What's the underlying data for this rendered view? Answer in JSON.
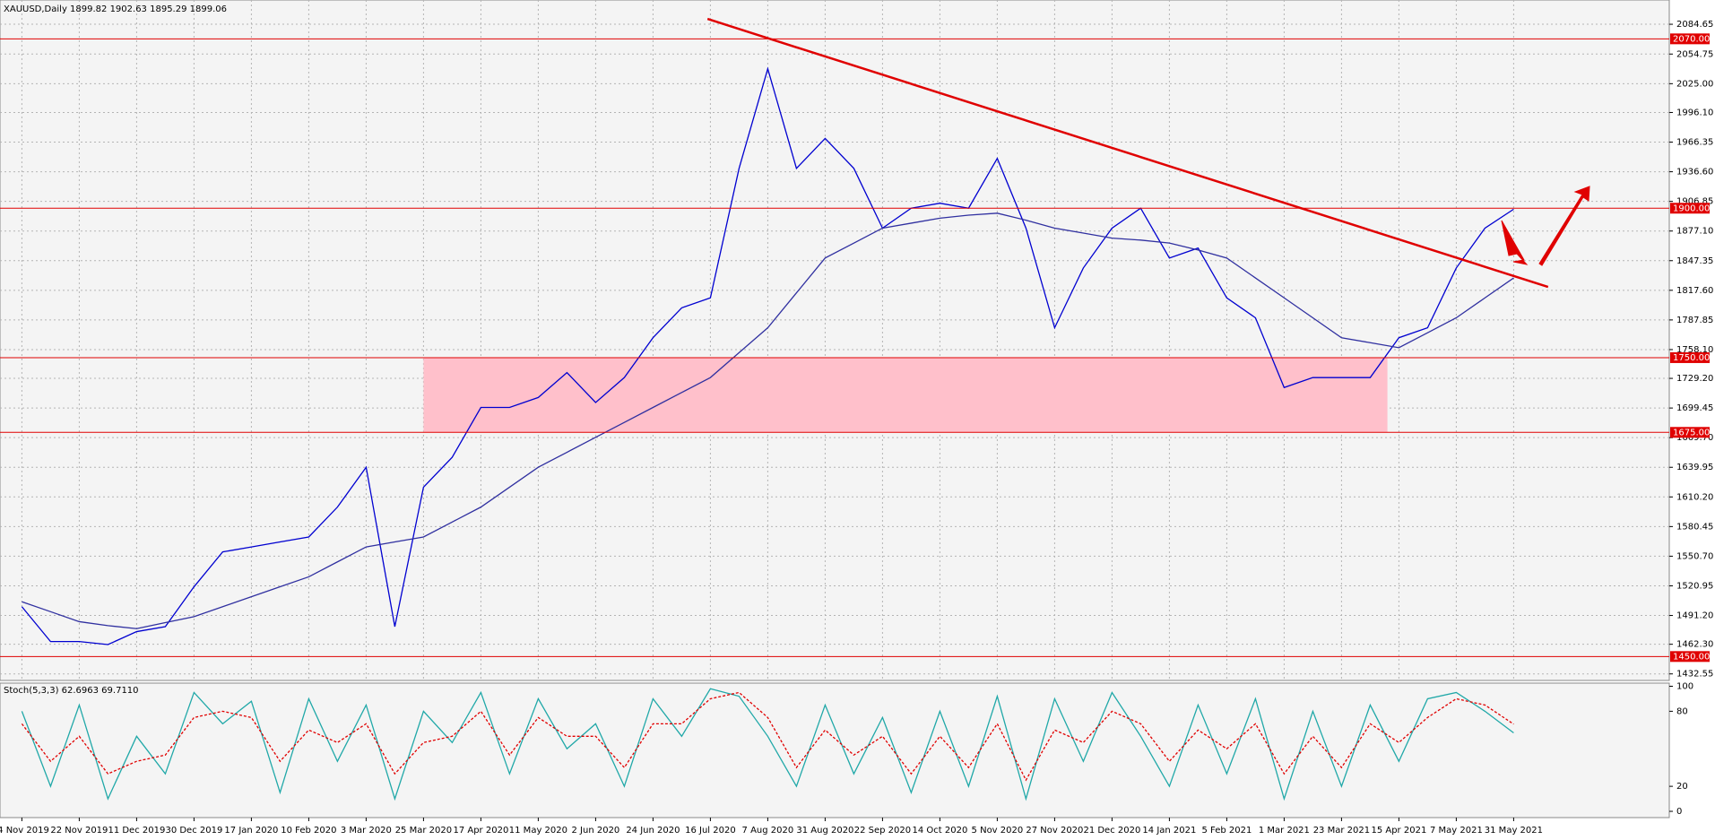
{
  "chart_data": [
    {
      "type": "line",
      "title": "XAUUSD,Daily  1899.82 1902.63 1895.29 1899.06",
      "categories": [
        "4 Nov 2019",
        null,
        "22 Nov 2019",
        null,
        "11 Dec 2019",
        null,
        "30 Dec 2019",
        null,
        "17 Jan 2020",
        null,
        "10 Feb 2020",
        null,
        "3 Mar 2020",
        null,
        "25 Mar 2020",
        null,
        "17 Apr 2020",
        null,
        "11 May 2020",
        null,
        "2 Jun 2020",
        null,
        "24 Jun 2020",
        null,
        "16 Jul 2020",
        null,
        "7 Aug 2020",
        null,
        "31 Aug 2020",
        null,
        "22 Sep 2020",
        null,
        "14 Oct 2020",
        null,
        "5 Nov 2020",
        null,
        "27 Nov 2020",
        null,
        "21 Dec 2020",
        null,
        "14 Jan 2021",
        null,
        "5 Feb 2021",
        null,
        "1 Mar 2021",
        null,
        "23 Mar 2021",
        null,
        "15 Apr 2021",
        null,
        "7 May 2021",
        null,
        "31 May 2021"
      ],
      "series": [
        {
          "color": "#0000d0",
          "values": [
            1500,
            1465,
            1465,
            1462,
            1475,
            1480,
            1520,
            1555,
            1560,
            1565,
            1570,
            1600,
            1640,
            1480,
            1620,
            1650,
            1700,
            1700,
            1710,
            1735,
            1705,
            1730,
            1770,
            1800,
            1810,
            1940,
            2040,
            1940,
            1970,
            1940,
            1880,
            1900,
            1905,
            1900,
            1950,
            1880,
            1780,
            1840,
            1880,
            1900,
            1850,
            1860,
            1810,
            1790,
            1720,
            1730,
            1730,
            1730,
            1770,
            1780,
            1840,
            1880,
            1899
          ]
        },
        {
          "color": "#3030a0",
          "values": [
            1505,
            1495,
            1485,
            1481,
            1478,
            1484,
            1490,
            1500,
            1510,
            1520,
            1530,
            1545,
            1560,
            1565,
            1570,
            1585,
            1600,
            1620,
            1640,
            1655,
            1670,
            1685,
            1700,
            1715,
            1730,
            1755,
            1780,
            1815,
            1850,
            1865,
            1880,
            1885,
            1890,
            1893,
            1895,
            1888,
            1880,
            1875,
            1870,
            1868,
            1865,
            1858,
            1850,
            1830,
            1810,
            1790,
            1770,
            1765,
            1760,
            1775,
            1790,
            1810,
            1830
          ]
        }
      ],
      "ylim": [
        1426,
        2109
      ],
      "yticks": [
        2084.65,
        2054.75,
        {
          "value": 2025,
          "label": "2025.00"
        },
        {
          "value": 1996.1,
          "label": "1996.10"
        },
        1966.35,
        {
          "value": 1936.6,
          "label": "1936.60"
        },
        1906.85,
        {
          "value": 1877.1,
          "label": "1877.10"
        },
        1847.35,
        {
          "value": 1817.6,
          "label": "1817.60"
        },
        1787.85,
        {
          "value": 1758.1,
          "label": "1758.10"
        },
        {
          "value": 1729.2,
          "label": "1729.20"
        },
        1699.45,
        {
          "value": 1669.7,
          "label": "1669.70"
        },
        1639.95,
        {
          "value": 1610.2,
          "label": "1610.20"
        },
        1580.45,
        {
          "value": 1550.7,
          "label": "1550.70"
        },
        1520.95,
        {
          "value": 1491.2,
          "label": "1491.20"
        },
        {
          "value": 1462.3,
          "label": "1462.30"
        },
        1432.55
      ],
      "grid": true,
      "levels": [
        {
          "value": 2070,
          "label": "2070.00"
        },
        {
          "value": 1900,
          "label": "1900.00"
        },
        {
          "value": 1750,
          "label": "1750.00"
        },
        {
          "value": 1675,
          "label": "1675.00"
        },
        {
          "value": 1450,
          "label": "1450.00"
        }
      ],
      "level_color": "#e00000",
      "zone": {
        "values": [
          1675,
          1750
        ],
        "color": "#ffc0cb"
      },
      "trendline": {
        "values": [
          2090,
          1821
        ],
        "color": "#e00000"
      }
    },
    {
      "type": "line",
      "title": "Stoch(5,3,3) 62.6963 69.7110",
      "series": [
        {
          "color": "#20a8a8",
          "dash": false,
          "values": [
            80,
            20,
            85,
            10,
            60,
            30,
            95,
            70,
            88,
            15,
            90,
            40,
            85,
            10,
            80,
            55,
            95,
            30,
            90,
            50,
            70,
            20,
            90,
            60,
            98,
            92,
            60,
            20,
            85,
            30,
            75,
            15,
            80,
            20,
            92,
            10,
            90,
            40,
            95,
            60,
            20,
            85,
            30,
            90,
            10,
            80,
            20,
            85,
            40,
            90,
            95,
            80,
            62.6963
          ]
        },
        {
          "color": "#e00000",
          "dash": true,
          "values": [
            70,
            40,
            60,
            30,
            40,
            45,
            75,
            80,
            75,
            40,
            65,
            55,
            70,
            30,
            55,
            60,
            80,
            45,
            75,
            60,
            60,
            35,
            70,
            70,
            90,
            95,
            75,
            35,
            65,
            45,
            60,
            30,
            60,
            35,
            70,
            25,
            65,
            55,
            80,
            70,
            40,
            65,
            50,
            70,
            30,
            60,
            35,
            70,
            55,
            75,
            90,
            85,
            69.711
          ]
        }
      ],
      "ylim": [
        -5,
        102.5
      ],
      "yticks": [
        100,
        80,
        20,
        0
      ],
      "grid": false
    }
  ]
}
